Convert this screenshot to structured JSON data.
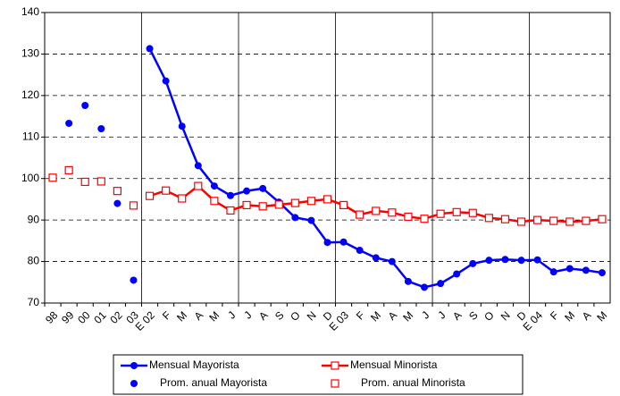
{
  "chart_data": {
    "type": "line",
    "categories": [
      "98",
      "99",
      "00",
      "01",
      "02",
      "03",
      "E 02",
      "F",
      "M",
      "A",
      "M",
      "J",
      "J",
      "A",
      "S",
      "O",
      "N",
      "D",
      "E 03",
      "F",
      "M",
      "A",
      "M",
      "J",
      "J",
      "A",
      "S",
      "O",
      "N",
      "D",
      "E 04",
      "F",
      "M",
      "A",
      "M"
    ],
    "series": [
      {
        "name": "Mensual Mayorista",
        "color": "#0000ff",
        "style": "line",
        "marker": "circle",
        "values": [
          null,
          null,
          null,
          null,
          null,
          null,
          131.3,
          123.5,
          112.6,
          103.1,
          98.2,
          95.9,
          97.0,
          97.6,
          94.3,
          90.6,
          89.9,
          84.6,
          84.7,
          82.7,
          80.9,
          80.0,
          75.2,
          73.8,
          74.7,
          77.0,
          79.5,
          80.3,
          80.5,
          80.3,
          80.4,
          77.5,
          78.3,
          77.9,
          77.3
        ]
      },
      {
        "name": "Mensual Minorista",
        "color": "#ff0000",
        "style": "line",
        "marker": "square",
        "values": [
          null,
          null,
          null,
          null,
          null,
          null,
          95.8,
          97.1,
          95.2,
          98.2,
          94.6,
          92.3,
          93.6,
          93.3,
          93.7,
          94.1,
          94.6,
          95.0,
          93.6,
          91.3,
          92.2,
          91.8,
          90.8,
          90.3,
          91.5,
          91.9,
          91.7,
          90.5,
          90.2,
          89.6,
          90.0,
          89.8,
          89.6,
          89.8,
          90.2
        ]
      },
      {
        "name": "Prom. anual Mayorista",
        "color": "#0000ff",
        "style": "points",
        "marker": "circle",
        "values": [
          null,
          113.3,
          117.6,
          112.0,
          94.0,
          75.5,
          null,
          null,
          null,
          null,
          null,
          null,
          null,
          null,
          null,
          null,
          null,
          null,
          null,
          null,
          null,
          null,
          null,
          null,
          null,
          null,
          null,
          null,
          null,
          null,
          null,
          null,
          null,
          null,
          null
        ]
      },
      {
        "name": "Prom. anual Minorista",
        "color": "#ff0000",
        "style": "points",
        "marker": "square",
        "values": [
          100.2,
          102.0,
          99.2,
          99.3,
          97.0,
          93.5,
          null,
          null,
          null,
          null,
          null,
          null,
          null,
          null,
          null,
          null,
          null,
          null,
          null,
          null,
          null,
          null,
          null,
          null,
          null,
          null,
          null,
          null,
          null,
          null,
          null,
          null,
          null,
          null,
          null
        ]
      }
    ],
    "ylim": [
      70,
      140
    ],
    "yticks": [
      70,
      80,
      90,
      100,
      110,
      120,
      130,
      140
    ],
    "grid": true
  }
}
